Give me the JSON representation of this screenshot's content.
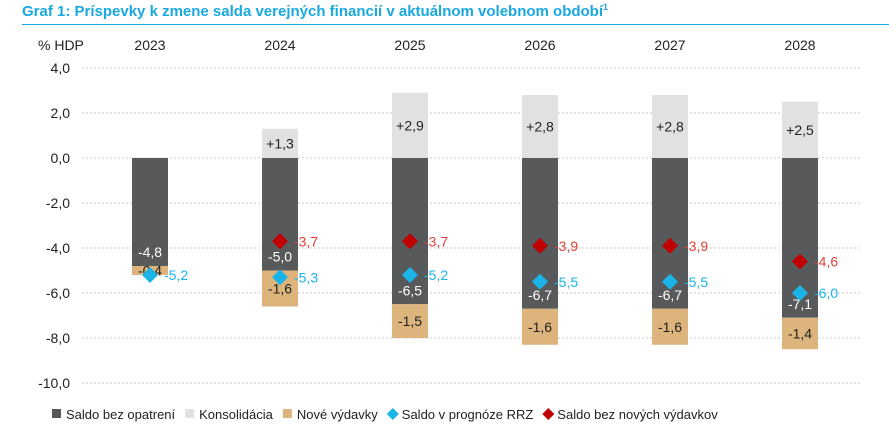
{
  "chart_data": {
    "type": "bar",
    "title": "Graf 1: Príspevky k zmene salda verejných financií v aktuálnom volebnom období",
    "title_sup": "1",
    "ylabel": "% HDP",
    "ylim": [
      -10,
      4
    ],
    "yticks": [
      "4,0",
      "2,0",
      "0,0",
      "-2,0",
      "-4,0",
      "-6,0",
      "-8,0",
      "-10,0"
    ],
    "ytick_values": [
      4,
      2,
      0,
      -2,
      -4,
      -6,
      -8,
      -10
    ],
    "categories": [
      "2023",
      "2024",
      "2025",
      "2026",
      "2027",
      "2028"
    ],
    "series": [
      {
        "name": "Saldo bez opatrení",
        "kind": "bar",
        "color": "#58595b",
        "values": [
          -4.8,
          -5.0,
          -6.5,
          -6.7,
          -6.7,
          -7.1
        ],
        "labels": [
          "-4,8",
          "-5,0",
          "-6,5",
          "-6,7",
          "-6,7",
          "-7,1"
        ]
      },
      {
        "name": "Konsolidácia",
        "kind": "bar",
        "color": "#e0e1e1",
        "values": [
          null,
          1.3,
          2.9,
          2.8,
          2.8,
          2.5
        ],
        "labels": [
          "",
          "+1,3",
          "+2,9",
          "+2,8",
          "+2,8",
          "+2,5"
        ]
      },
      {
        "name": "Nové výdavky",
        "kind": "bar",
        "color": "#dcb47c",
        "values": [
          -0.4,
          -1.6,
          -1.5,
          -1.6,
          -1.6,
          -1.4
        ],
        "labels": [
          "-0,4",
          "-1,6",
          "-1,5",
          "-1,6",
          "-1,6",
          "-1,4"
        ]
      },
      {
        "name": "Saldo v prognóze RRZ",
        "kind": "marker",
        "color": "#1ab4e8",
        "values": [
          -5.2,
          -5.3,
          -5.2,
          -5.5,
          -5.5,
          -6.0
        ],
        "labels": [
          "-5,2",
          "-5,3",
          "-5,2",
          "-5,5",
          "-5,5",
          "-6,0"
        ]
      },
      {
        "name": "Saldo bez nových výdavkov",
        "kind": "marker",
        "color": "#c00000",
        "values": [
          null,
          -3.7,
          -3.7,
          -3.9,
          -3.9,
          -4.6
        ],
        "labels": [
          "",
          "-3,7",
          "-3,7",
          "-3,9",
          "-3,9",
          "-4,6"
        ]
      }
    ],
    "label_colors": {
      "Saldo v prognóze RRZ": "#1ab4e8",
      "Saldo bez nových výdavkov": "#e0413a"
    },
    "grid": true,
    "legend": "bottom"
  }
}
